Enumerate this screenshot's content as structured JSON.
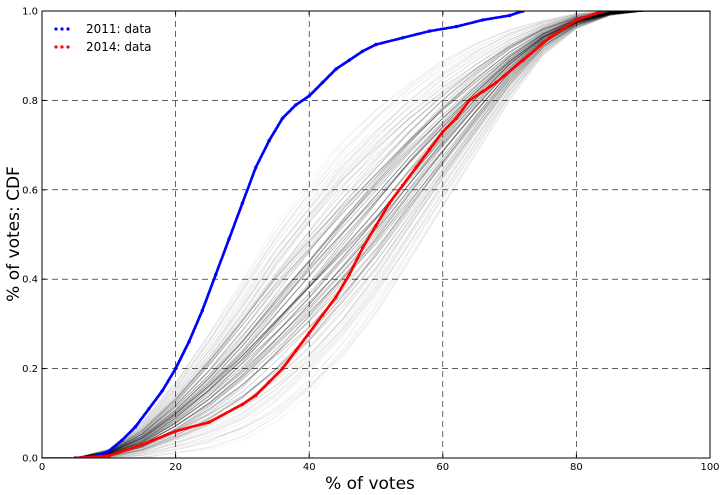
{
  "chart_data": {
    "type": "scatter",
    "xlabel": "% of votes",
    "ylabel": "% of votes: CDF",
    "xlim": [
      0,
      100
    ],
    "ylim": [
      0,
      1.0
    ],
    "x_ticks": [
      "0",
      "20",
      "40",
      "60",
      "80",
      "100"
    ],
    "y_ticks": [
      "0.0",
      "0.2",
      "0.4",
      "0.6",
      "0.8",
      "1.0"
    ],
    "grid": true,
    "legend_position": "top-left",
    "legend": [
      "2011: data",
      "2014: data"
    ],
    "series": [
      {
        "name": "2011: data",
        "color": "#0000ff",
        "x": [
          5,
          8,
          10,
          12,
          14,
          16,
          18,
          20,
          22,
          24,
          26,
          28,
          30,
          32,
          34,
          36,
          38,
          40,
          42,
          44,
          46,
          48,
          50,
          54,
          58,
          62,
          66,
          70,
          72
        ],
        "y": [
          0.0,
          0.004,
          0.015,
          0.04,
          0.07,
          0.11,
          0.15,
          0.2,
          0.26,
          0.33,
          0.41,
          0.49,
          0.57,
          0.65,
          0.71,
          0.76,
          0.79,
          0.81,
          0.84,
          0.87,
          0.89,
          0.91,
          0.925,
          0.94,
          0.955,
          0.965,
          0.98,
          0.99,
          1.0
        ]
      },
      {
        "name": "2014: data",
        "color": "#ff0000",
        "x": [
          5,
          10,
          15,
          20,
          25,
          30,
          32,
          34,
          36,
          38,
          40,
          42,
          44,
          46,
          48,
          50,
          52,
          54,
          56,
          58,
          60,
          62,
          64,
          66,
          68,
          72,
          76,
          80,
          84
        ],
        "y": [
          0.0,
          0.005,
          0.03,
          0.06,
          0.08,
          0.12,
          0.14,
          0.17,
          0.2,
          0.24,
          0.28,
          0.32,
          0.36,
          0.41,
          0.47,
          0.52,
          0.57,
          0.61,
          0.65,
          0.69,
          0.73,
          0.76,
          0.8,
          0.82,
          0.84,
          0.89,
          0.94,
          0.98,
          1.0
        ]
      }
    ],
    "background_band": {
      "description_color": "#000000",
      "x": [
        5,
        10,
        15,
        20,
        25,
        30,
        35,
        40,
        45,
        50,
        55,
        60,
        65,
        70,
        75,
        80,
        85,
        90
      ],
      "y_low": [
        0.0,
        0.0,
        0.0,
        0.01,
        0.02,
        0.04,
        0.08,
        0.14,
        0.22,
        0.32,
        0.44,
        0.56,
        0.68,
        0.8,
        0.9,
        0.96,
        0.99,
        1.0
      ],
      "y_high": [
        0.0,
        0.02,
        0.08,
        0.17,
        0.28,
        0.4,
        0.52,
        0.62,
        0.71,
        0.78,
        0.84,
        0.89,
        0.93,
        0.96,
        0.98,
        0.995,
        1.0,
        1.0
      ]
    }
  }
}
